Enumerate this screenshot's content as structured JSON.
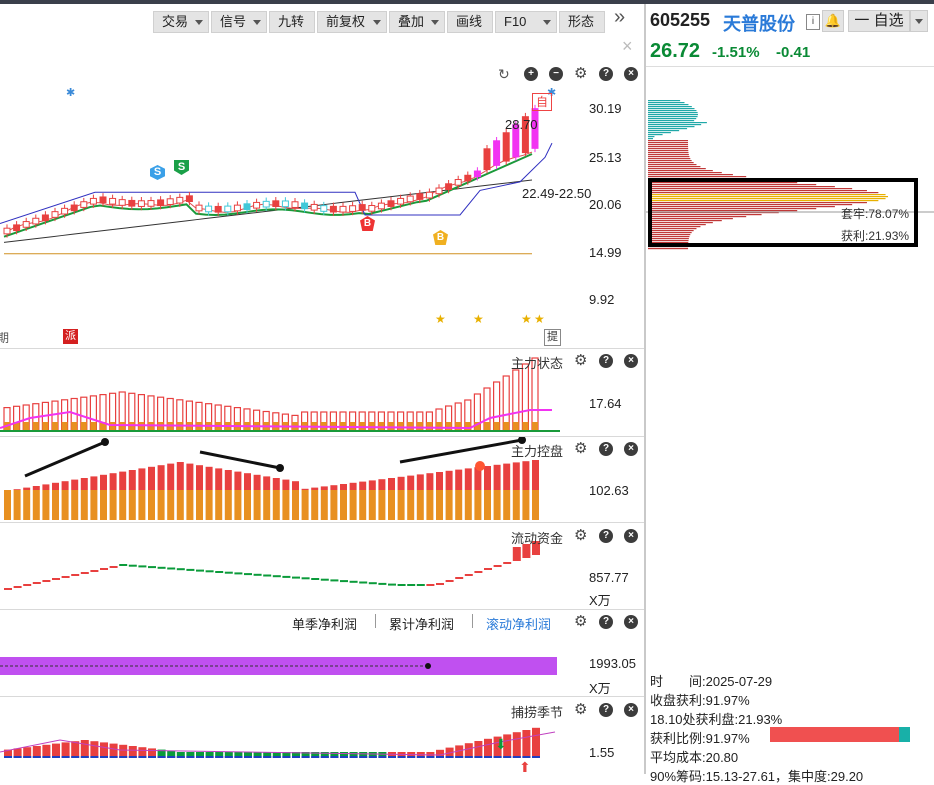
{
  "toolbar": {
    "items": [
      {
        "label": "交易",
        "dropdown": true
      },
      {
        "label": "信号",
        "dropdown": true
      },
      {
        "label": "九转",
        "dropdown": false
      },
      {
        "label": "前复权",
        "dropdown": true
      },
      {
        "label": "叠加",
        "dropdown": true
      },
      {
        "label": "画线",
        "dropdown": false
      },
      {
        "label": "F10",
        "dropdown": true
      },
      {
        "label": "形态",
        "dropdown": false
      }
    ],
    "expand_glyph": "»",
    "close_glyph": "×"
  },
  "stock": {
    "code": "605255",
    "name": "天普股份",
    "info_glyph": "i",
    "watch_label": "一 自选",
    "price": "26.72",
    "change_pct": "-1.51%",
    "change": "-0.41"
  },
  "main_chart": {
    "y_labels": [
      "30.19",
      "25.13",
      "20.06",
      "14.99",
      "9.92"
    ],
    "price_tag": "28.70",
    "range_tag": "22.49-22.50",
    "self_tag": "自",
    "s_markers": [
      "S",
      "S"
    ],
    "b_markers": [
      "B",
      "B"
    ],
    "bottom_tags": [
      "期",
      "派",
      "提"
    ]
  },
  "panels": {
    "zhuli_zhuangtai": {
      "name": "主力状态",
      "value": "17.64"
    },
    "zhuli_kongpan": {
      "name": "主力控盘",
      "value": "102.63"
    },
    "liudong_zijin": {
      "name": "流动资金",
      "value": "857.77",
      "unit": "X万"
    },
    "profit": {
      "tabs": [
        "单季净利润",
        "累计净利润",
        "滚动净利润"
      ],
      "active": 2,
      "value": "1993.05",
      "unit": "X万"
    },
    "bulao": {
      "name": "捕捞季节",
      "value": "1.55"
    }
  },
  "chip": {
    "label_taolao": "套牢:78.07%",
    "label_huoli": "获利:21.93%"
  },
  "right_info": {
    "time": "时　　间:2025-07-29",
    "profit_rate": "收盘获利:91.97%",
    "profit_at": "18.10处获利盘:21.93%",
    "profit_ratio_label": "获利比例:91.97%",
    "avg_cost": "平均成本:20.80",
    "range90": "90%筹码:15.13-27.61，集中度:29.20"
  },
  "colors": {
    "up": "#e8403f",
    "down": "#0a9b3a",
    "magenta": "#f233f2",
    "orange": "#e89020",
    "purple": "#c050f0"
  }
}
